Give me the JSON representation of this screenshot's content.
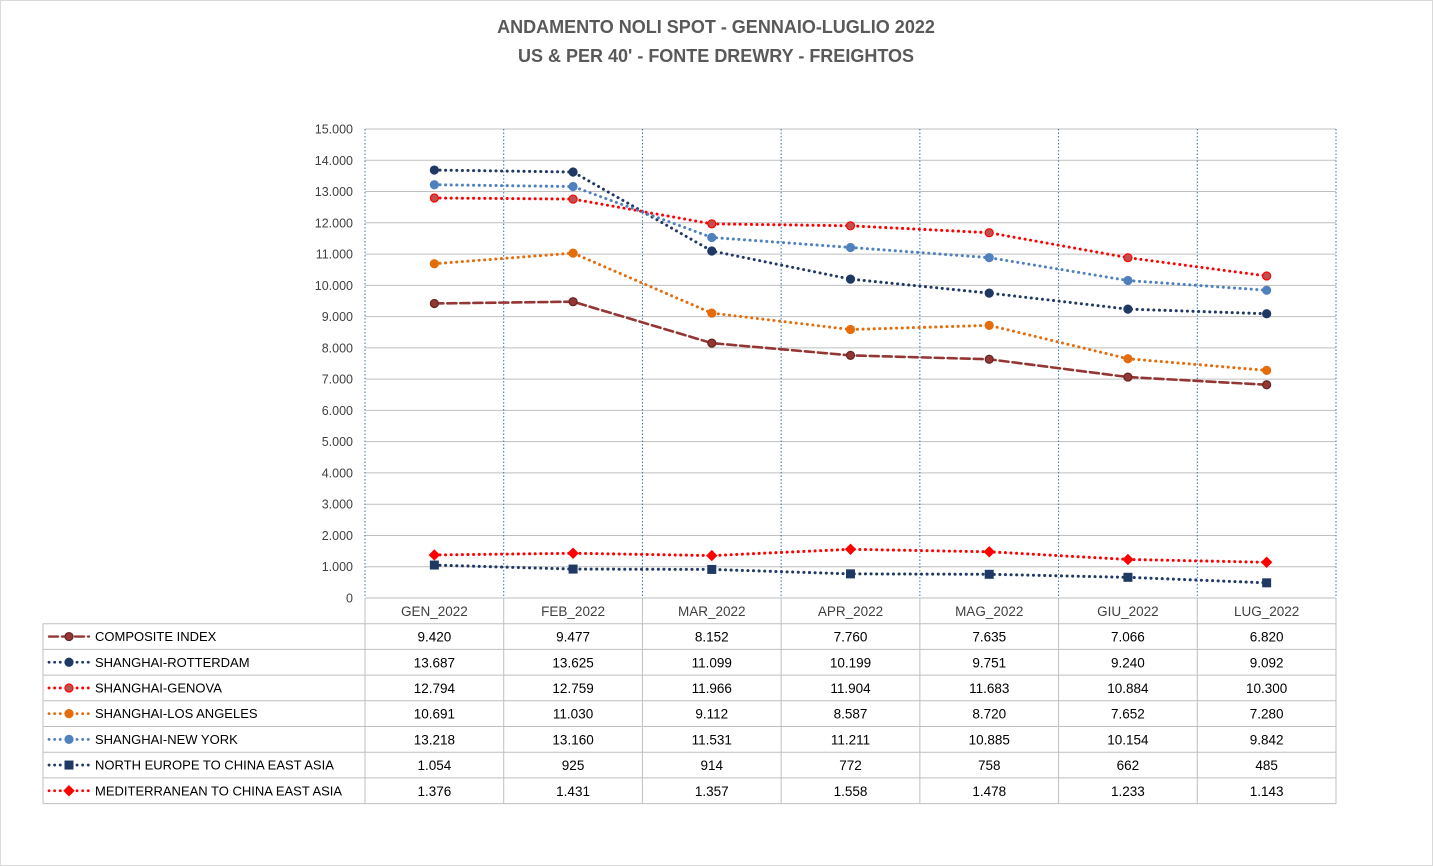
{
  "chart_data": {
    "type": "line",
    "title": "ANDAMENTO NOLI SPOT - GENNAIO-LUGLIO 2022",
    "subtitle": "US & PER 40' - FONTE DREWRY - FREIGHTOS",
    "categories": [
      "GEN_2022",
      "FEB_2022",
      "MAR_2022",
      "APR_2022",
      "MAG_2022",
      "GIU_2022",
      "LUG_2022"
    ],
    "ylim": [
      0,
      15000
    ],
    "yticks": [
      0,
      1000,
      2000,
      3000,
      4000,
      5000,
      6000,
      7000,
      8000,
      9000,
      10000,
      11000,
      12000,
      13000,
      14000,
      15000
    ],
    "ytick_labels": [
      "0",
      "1.000",
      "2.000",
      "3.000",
      "4.000",
      "5.000",
      "6.000",
      "7.000",
      "8.000",
      "9.000",
      "10.000",
      "11.000",
      "12.000",
      "13.000",
      "14.000",
      "15.000"
    ],
    "grid": true,
    "legend": "data-table",
    "series": [
      {
        "name": "COMPOSITE INDEX",
        "values": [
          9420,
          9477,
          8152,
          7760,
          7635,
          7066,
          6820
        ],
        "labels": [
          "9.420",
          "9.477",
          "8.152",
          "7.760",
          "7.635",
          "7.066",
          "6.820"
        ],
        "color": "#943634",
        "dash": "dashed",
        "marker": "circle",
        "marker_fill": "#943634",
        "marker_stroke": "#632523"
      },
      {
        "name": "SHANGHAI-ROTTERDAM",
        "values": [
          13687,
          13625,
          11099,
          10199,
          9751,
          9240,
          9092
        ],
        "labels": [
          "13.687",
          "13.625",
          "11.099",
          "10.199",
          "9.751",
          "9.240",
          "9.092"
        ],
        "color": "#1f3864",
        "dash": "dotted",
        "marker": "circle",
        "marker_fill": "#1f3864",
        "marker_stroke": "#1f3864"
      },
      {
        "name": "SHANGHAI-GENOVA",
        "values": [
          12794,
          12759,
          11966,
          11904,
          11683,
          10884,
          10300
        ],
        "labels": [
          "12.794",
          "12.759",
          "11.966",
          "11.904",
          "11.683",
          "10.884",
          "10.300"
        ],
        "color": "#ff0000",
        "dash": "dotted",
        "marker": "circle",
        "marker_fill": "#c0504d",
        "marker_stroke": "#ff0000"
      },
      {
        "name": "SHANGHAI-LOS ANGELES",
        "values": [
          10691,
          11030,
          9112,
          8587,
          8720,
          7652,
          7280
        ],
        "labels": [
          "10.691",
          "11.030",
          "9.112",
          "8.587",
          "8.720",
          "7.652",
          "7.280"
        ],
        "color": "#e46c0a",
        "dash": "dotted",
        "marker": "circle",
        "marker_fill": "#e46c0a",
        "marker_stroke": "#e46c0a"
      },
      {
        "name": "SHANGHAI-NEW YORK",
        "values": [
          13218,
          13160,
          11531,
          11211,
          10885,
          10154,
          9842
        ],
        "labels": [
          "13.218",
          "13.160",
          "11.531",
          "11.211",
          "10.885",
          "10.154",
          "9.842"
        ],
        "color": "#4f81bd",
        "dash": "dotted",
        "marker": "circle",
        "marker_fill": "#4f81bd",
        "marker_stroke": "#4f81bd"
      },
      {
        "name": "NORTH EUROPE TO CHINA EAST ASIA",
        "values": [
          1054,
          925,
          914,
          772,
          758,
          662,
          485
        ],
        "labels": [
          "1.054",
          "925",
          "914",
          "772",
          "758",
          "662",
          "485"
        ],
        "color": "#1f3864",
        "dash": "dotted",
        "marker": "square",
        "marker_fill": "#1f3864",
        "marker_stroke": "#1f3864"
      },
      {
        "name": "MEDITERRANEAN TO CHINA EAST ASIA",
        "values": [
          1376,
          1431,
          1357,
          1558,
          1478,
          1233,
          1143
        ],
        "labels": [
          "1.376",
          "1.431",
          "1.357",
          "1.558",
          "1.478",
          "1.233",
          "1.143"
        ],
        "color": "#ff0000",
        "dash": "dotted",
        "marker": "diamond",
        "marker_fill": "#ff0000",
        "marker_stroke": "#ff0000"
      }
    ]
  }
}
